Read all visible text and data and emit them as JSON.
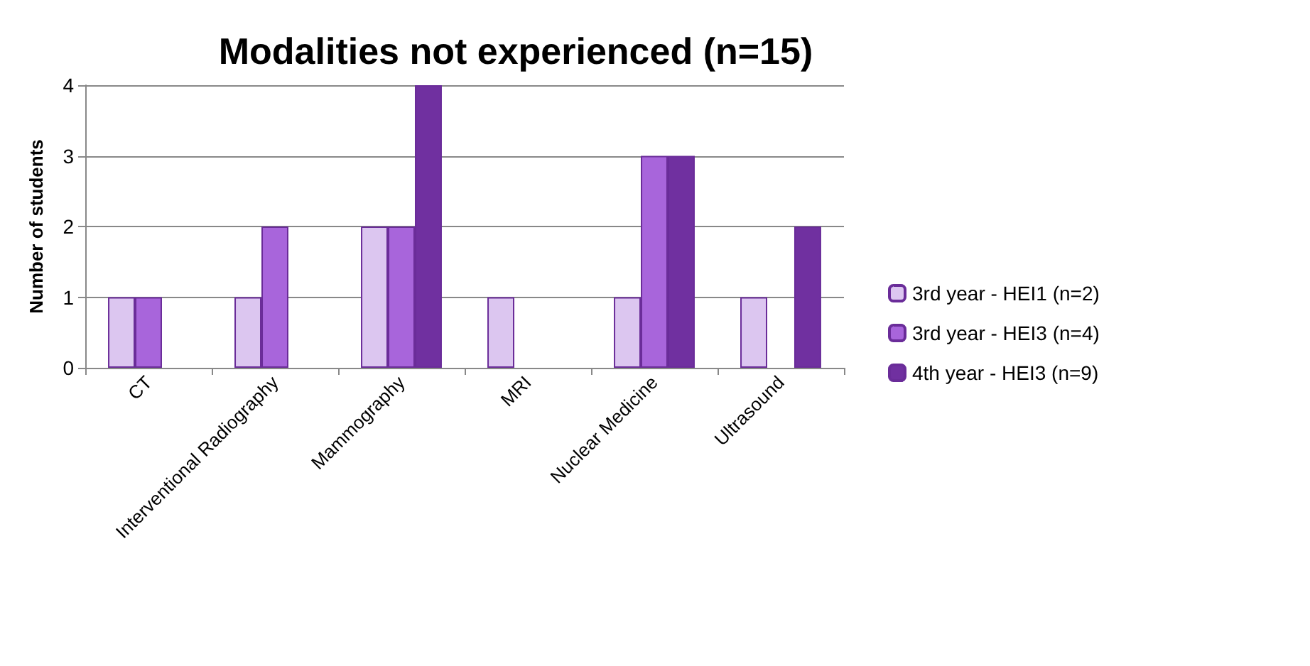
{
  "chart_data": {
    "type": "bar",
    "title": "Modalities not experienced (n=15)",
    "ylabel": "Number of students",
    "categories": [
      "CT",
      "Interventional Radiography",
      "Mammography",
      "MRI",
      "Nuclear Medicine",
      "Ultrasound"
    ],
    "series": [
      {
        "name": "3rd year - HEI1 (n=2)",
        "color": "#dcc6f0",
        "values": [
          1,
          1,
          2,
          1,
          1,
          1
        ]
      },
      {
        "name": "3rd year - HEI3 (n=4)",
        "color": "#a865db",
        "values": [
          1,
          2,
          2,
          null,
          3,
          null
        ]
      },
      {
        "name": "4th year - HEI3 (n=9)",
        "color": "#7030a0",
        "values": [
          null,
          null,
          4,
          null,
          3,
          2
        ]
      }
    ],
    "ylim": [
      0,
      4
    ],
    "yticks": [
      0,
      1,
      2,
      3,
      4
    ],
    "grid": "y",
    "legend": "right"
  }
}
